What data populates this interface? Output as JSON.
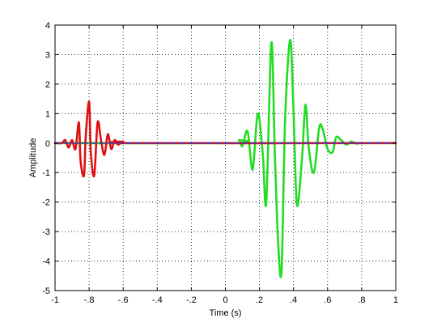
{
  "chart_data": {
    "type": "line",
    "title": "",
    "xlabel": "Time (s)",
    "ylabel": "Amplitude",
    "xlim": [
      -1,
      1
    ],
    "ylim": [
      -5,
      4
    ],
    "xticks": [
      -1,
      -0.8,
      -0.6,
      -0.4,
      -0.2,
      0,
      0.2,
      0.4,
      0.6,
      0.8,
      1
    ],
    "yticks": [
      -5,
      -4,
      -3,
      -2,
      -1,
      0,
      1,
      2,
      3,
      4
    ],
    "grid": true,
    "legend": "none",
    "series": [
      {
        "color": "#f0e000",
        "style": "solid",
        "x": [
          -1,
          1
        ],
        "y": [
          0,
          0
        ]
      },
      {
        "color": "#22dd22",
        "style": "solid",
        "x": [
          -1,
          0.05,
          0.08,
          0.1,
          0.13,
          0.16,
          0.19,
          0.22,
          0.24,
          0.27,
          0.29,
          0.31,
          0.33,
          0.35,
          0.38,
          0.4,
          0.42,
          0.45,
          0.47,
          0.49,
          0.52,
          0.55,
          0.57,
          0.6,
          0.63,
          0.65,
          0.68,
          0.71,
          0.74,
          0.77,
          0.8,
          1
        ],
        "y": [
          0,
          0,
          0.1,
          -0.1,
          0.4,
          -0.9,
          1.0,
          -0.4,
          -2.0,
          3.4,
          -0.3,
          -3.4,
          -4.3,
          0.7,
          3.5,
          1.1,
          -2.1,
          -0.5,
          1.3,
          -0.2,
          -1.0,
          0.5,
          0.5,
          -0.2,
          -0.3,
          0.2,
          0.1,
          -0.05,
          0.05,
          -0.02,
          0,
          0
        ]
      },
      {
        "color": "#dd1111",
        "style": "solid",
        "x": [
          -1,
          -0.96,
          -0.94,
          -0.92,
          -0.9,
          -0.88,
          -0.86,
          -0.85,
          -0.83,
          -0.82,
          -0.8,
          -0.79,
          -0.77,
          -0.75,
          -0.73,
          -0.71,
          -0.69,
          -0.67,
          -0.65,
          -0.63,
          -0.6,
          -0.55,
          1
        ],
        "y": [
          0,
          0,
          0.1,
          -0.15,
          0.1,
          -0.2,
          0.7,
          -0.6,
          -1.1,
          0.2,
          1.4,
          -0.3,
          -1.1,
          0.7,
          0.1,
          -0.4,
          0.3,
          -0.2,
          0.1,
          -0.05,
          0.05,
          0,
          0
        ]
      },
      {
        "color": "#2a3dd8",
        "style": "dashed",
        "x": [
          -1,
          1
        ],
        "y": [
          0,
          0
        ]
      }
    ]
  }
}
